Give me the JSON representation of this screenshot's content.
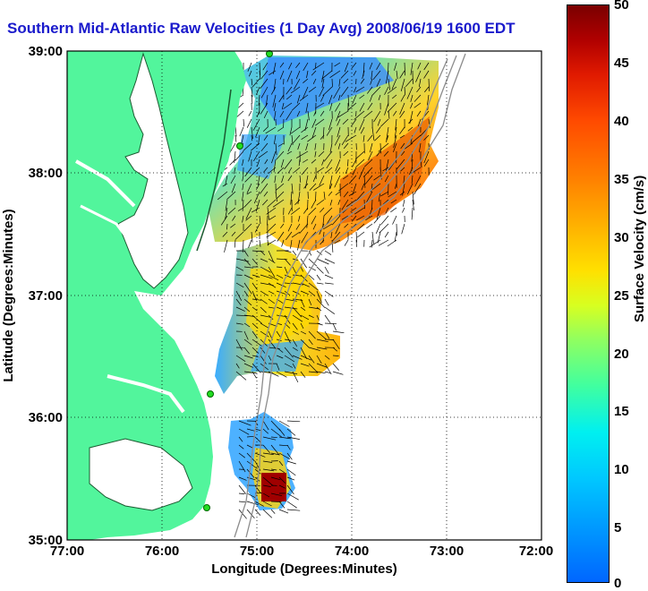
{
  "title": "Southern Mid-Atlantic Raw Velocities (1 Day Avg) 2008/06/19 1600 EDT",
  "xlabel": "Longitude (Degrees:Minutes)",
  "ylabel": "Latitude (Degrees:Minutes)",
  "x_ticks": [
    "77:00",
    "76:00",
    "75:00",
    "74:00",
    "73:00",
    "72:00"
  ],
  "y_ticks": [
    "39:00",
    "38:00",
    "37:00",
    "36:00",
    "35:00"
  ],
  "colorbar": {
    "label": "Surface Velocity (cm/s)",
    "ticks": [
      "50",
      "45",
      "40",
      "35",
      "30",
      "25",
      "20",
      "15",
      "10",
      "5",
      "0"
    ],
    "range": [
      0,
      50
    ]
  },
  "colors": {
    "land": "#52f59c",
    "title": "#1a1acc",
    "station": "#22dd22"
  }
}
